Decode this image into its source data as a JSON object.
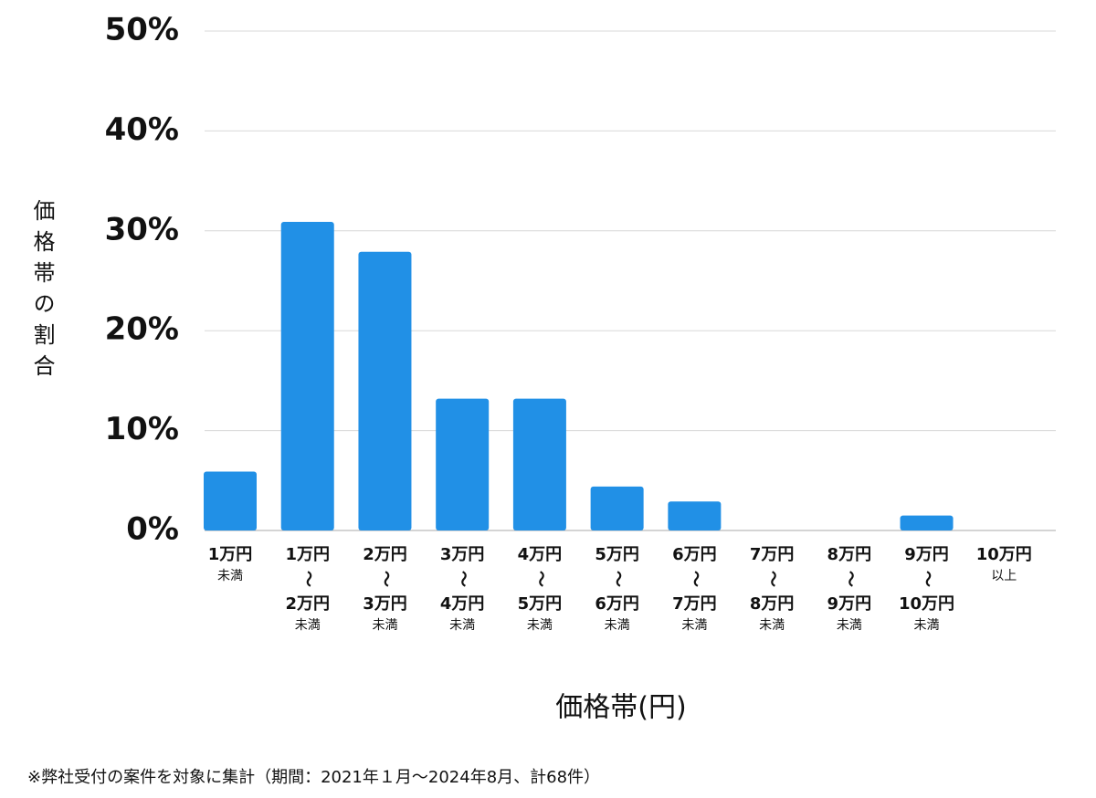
{
  "chart_data": {
    "type": "bar",
    "y_label": "価格帯の割合",
    "x_label": "価格帯(円)",
    "footnote": "※弊社受付の案件を対象に集計（期間：2021年１月〜2024年8月、計68件）",
    "categories": [
      [
        "1万円",
        "未満"
      ],
      [
        "1万円",
        "〜",
        "2万円",
        "未満"
      ],
      [
        "2万円",
        "〜",
        "3万円",
        "未満"
      ],
      [
        "3万円",
        "〜",
        "4万円",
        "未満"
      ],
      [
        "4万円",
        "〜",
        "5万円",
        "未満"
      ],
      [
        "5万円",
        "〜",
        "6万円",
        "未満"
      ],
      [
        "6万円",
        "〜",
        "7万円",
        "未満"
      ],
      [
        "7万円",
        "〜",
        "8万円",
        "未満"
      ],
      [
        "8万円",
        "〜",
        "9万円",
        "未満"
      ],
      [
        "9万円",
        "〜",
        "10万円",
        "未満"
      ],
      [
        "10万円",
        "以上"
      ]
    ],
    "values": [
      5.9,
      30.9,
      27.9,
      13.2,
      13.2,
      4.4,
      2.9,
      0,
      0,
      1.5,
      0
    ],
    "color": "#2190e6",
    "ylim": [
      0,
      50
    ],
    "yticks": [
      {
        "value": 0,
        "label": "0%"
      },
      {
        "value": 10,
        "label": "10%"
      },
      {
        "value": 20,
        "label": "20%"
      },
      {
        "value": 30,
        "label": "30%"
      },
      {
        "value": 40,
        "label": "40%"
      },
      {
        "value": 50,
        "label": "50%"
      }
    ],
    "grid": true
  }
}
